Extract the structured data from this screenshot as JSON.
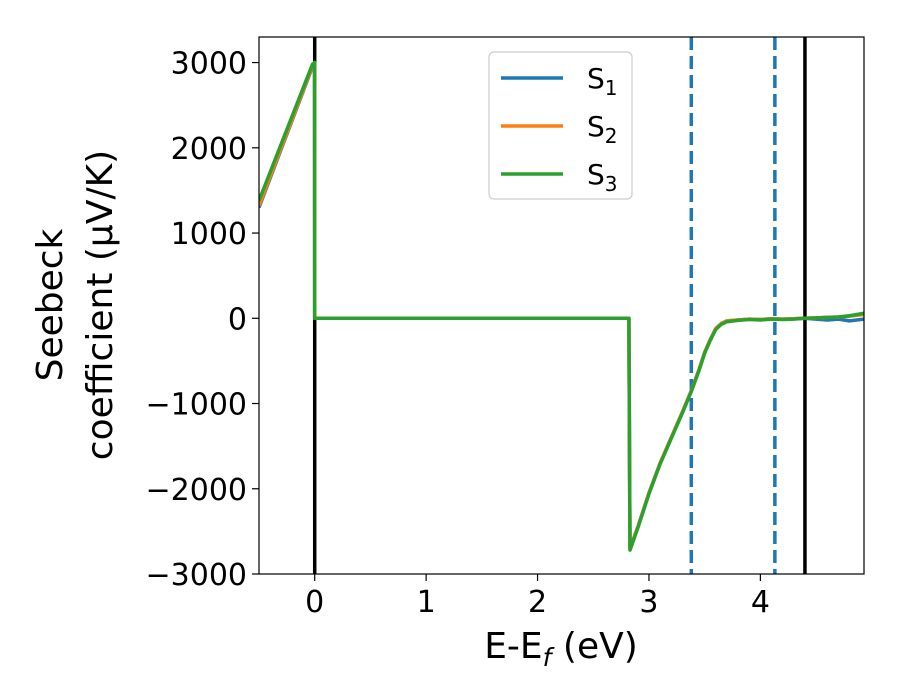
{
  "chart_data": {
    "type": "line",
    "xlabel": "E-E",
    "xlabel_sub": "f",
    "xlabel_unit": " (eV)",
    "ylabel_line1": "Seebeck",
    "ylabel_line2": "coefficient  (μV/K)",
    "xlim": [
      -0.5,
      4.93
    ],
    "ylim": [
      -3000,
      3300
    ],
    "xticks": [
      0,
      1,
      2,
      3,
      4
    ],
    "xtick_labels": [
      "0",
      "1",
      "2",
      "3",
      "4"
    ],
    "yticks": [
      -3000,
      -2000,
      -1000,
      0,
      1000,
      2000,
      3000
    ],
    "ytick_labels": [
      "−3000",
      "−2000",
      "−1000",
      "0",
      "1000",
      "2000",
      "3000"
    ],
    "legend_position": "upper-center",
    "grid": false,
    "vlines_solid": [
      0.0,
      4.4
    ],
    "vlines_dashed": [
      3.38,
      4.13
    ],
    "vline_solid_color": "#000000",
    "vline_dashed_color": "#1f77b4",
    "series": [
      {
        "name": "S",
        "sub": "1",
        "color": "#1f77b4",
        "x": [
          -0.5,
          -0.02,
          -0.001,
          0.0,
          0.001,
          2.0,
          2.82,
          2.825,
          2.83,
          2.9,
          3.0,
          3.1,
          3.2,
          3.3,
          3.38,
          3.45,
          3.5,
          3.55,
          3.6,
          3.65,
          3.7,
          3.8,
          3.9,
          4.0,
          4.1,
          4.2,
          4.3,
          4.4,
          4.5,
          4.6,
          4.7,
          4.8,
          4.93
        ],
        "y": [
          1300,
          2950,
          3000,
          0,
          0,
          0,
          0,
          -1500,
          -2700,
          -2450,
          -2050,
          -1700,
          -1400,
          -1100,
          -850,
          -600,
          -400,
          -250,
          -120,
          -60,
          -30,
          -20,
          -10,
          -15,
          -5,
          -10,
          -5,
          0,
          -10,
          -20,
          -10,
          -30,
          -10
        ]
      },
      {
        "name": "S",
        "sub": "2",
        "color": "#ff7f0e",
        "x": [
          -0.5,
          -0.02,
          -0.001,
          0.0,
          0.001,
          2.0,
          2.82,
          2.825,
          2.83,
          2.9,
          3.0,
          3.1,
          3.2,
          3.3,
          3.38,
          3.45,
          3.5,
          3.55,
          3.6,
          3.65,
          3.7,
          3.8,
          3.9,
          4.0,
          4.1,
          4.2,
          4.3,
          4.4,
          4.5,
          4.6,
          4.7,
          4.8,
          4.93
        ],
        "y": [
          1320,
          2960,
          3000,
          0,
          0,
          0,
          0,
          -1500,
          -2700,
          -2450,
          -2050,
          -1700,
          -1400,
          -1100,
          -850,
          -600,
          -400,
          -250,
          -120,
          -60,
          -30,
          -20,
          -10,
          -15,
          -5,
          -10,
          -5,
          0,
          5,
          10,
          15,
          25,
          45
        ]
      },
      {
        "name": "S",
        "sub": "3",
        "color": "#2ca02c",
        "x": [
          -0.5,
          -0.02,
          -0.001,
          0.0,
          0.001,
          2.0,
          2.82,
          2.825,
          2.83,
          2.9,
          3.0,
          3.1,
          3.2,
          3.3,
          3.38,
          3.45,
          3.5,
          3.55,
          3.6,
          3.65,
          3.7,
          3.8,
          3.9,
          4.0,
          4.1,
          4.2,
          4.3,
          4.4,
          4.5,
          4.6,
          4.7,
          4.8,
          4.93
        ],
        "y": [
          1380,
          2980,
          3000,
          0,
          0,
          0,
          0,
          -1500,
          -2720,
          -2460,
          -2060,
          -1710,
          -1410,
          -1110,
          -860,
          -610,
          -410,
          -260,
          -130,
          -70,
          -40,
          -25,
          -15,
          -20,
          -10,
          -15,
          -10,
          0,
          5,
          10,
          15,
          30,
          60
        ]
      }
    ]
  }
}
